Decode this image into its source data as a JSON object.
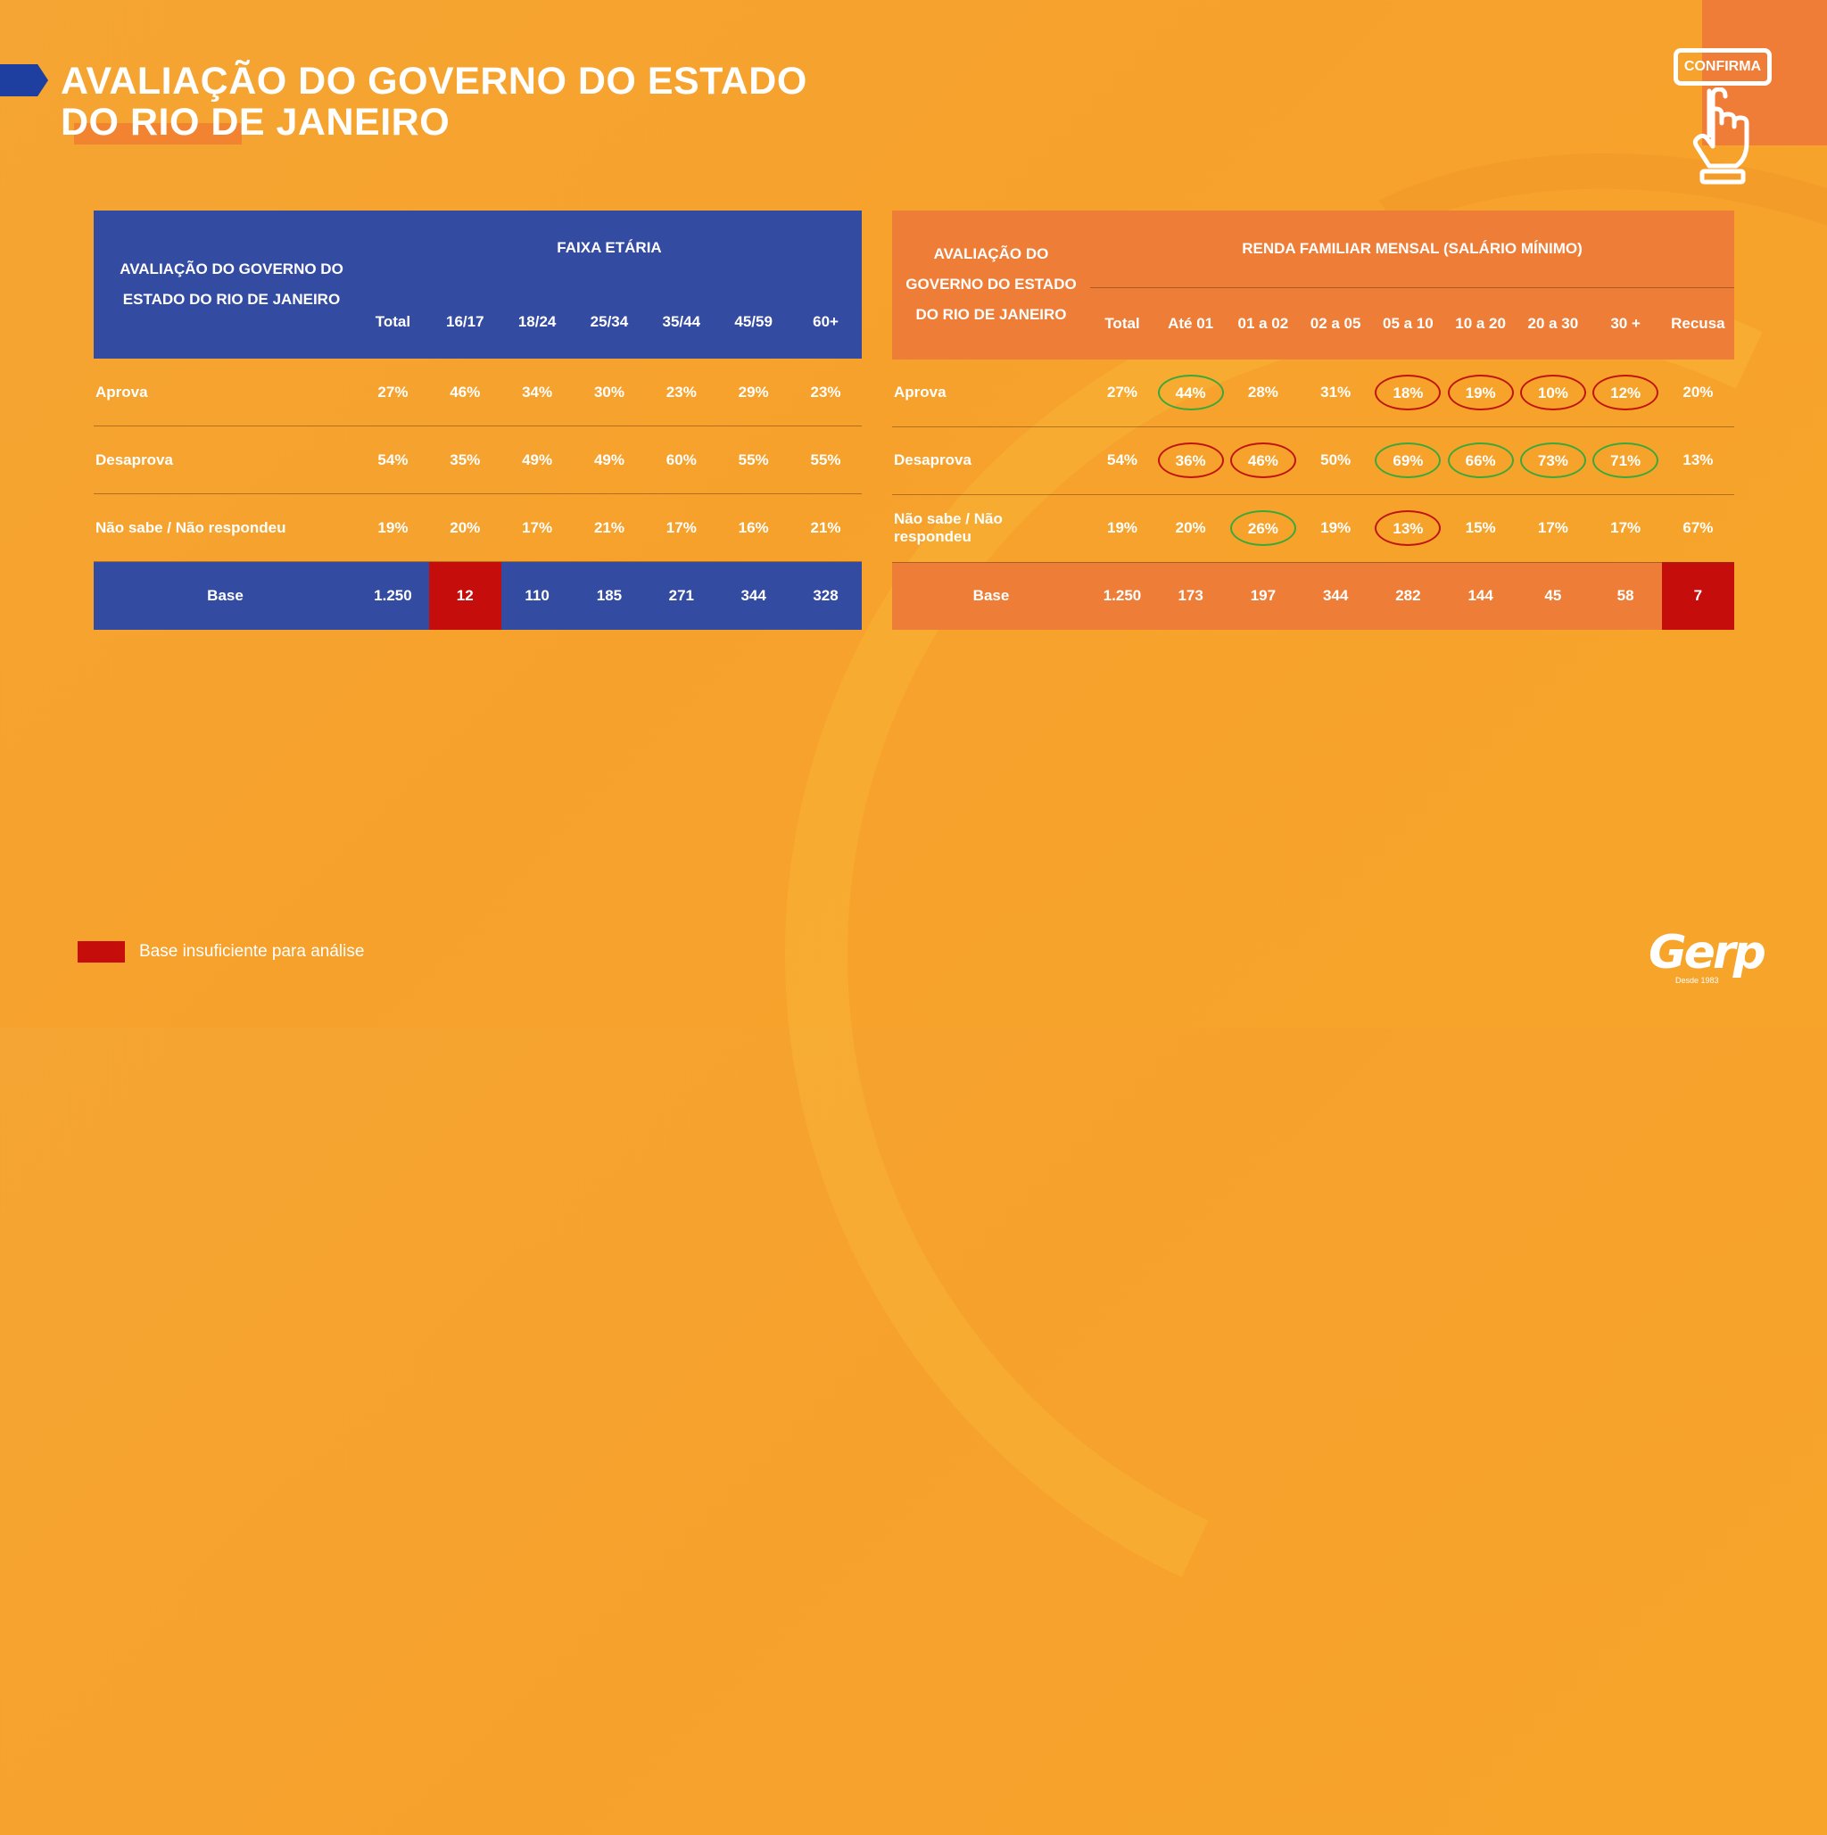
{
  "title": {
    "line1": "AVALIAÇÃO DO GOVERNO DO ESTADO",
    "line2": "DO RIO DE JANEIRO"
  },
  "confirm_badge": "CONFIRMA",
  "age_table": {
    "corner_label_line1": "AVALIAÇÃO DO GOVERNO DO",
    "corner_label_line2": "ESTADO DO RIO DE JANEIRO",
    "group_title": "FAIXA ETÁRIA",
    "columns": [
      "Total",
      "16/17",
      "18/24",
      "25/34",
      "35/44",
      "45/59",
      "60+"
    ],
    "rows": [
      {
        "label": "Aprova",
        "values": [
          "27%",
          "46%",
          "34%",
          "30%",
          "23%",
          "29%",
          "23%"
        ]
      },
      {
        "label": "Desaprova",
        "values": [
          "54%",
          "35%",
          "49%",
          "49%",
          "60%",
          "55%",
          "55%"
        ]
      },
      {
        "label": "Não sabe / Não respondeu",
        "values": [
          "19%",
          "20%",
          "17%",
          "21%",
          "17%",
          "16%",
          "21%"
        ]
      }
    ],
    "base": {
      "label": "Base",
      "values": [
        "1.250",
        "12",
        "110",
        "185",
        "271",
        "344",
        "328"
      ]
    }
  },
  "income_table": {
    "corner_label_line1": "AVALIAÇÃO DO",
    "corner_label_line2": "GOVERNO DO ESTADO",
    "corner_label_line3": "DO RIO DE JANEIRO",
    "group_title": "RENDA FAMILIAR MENSAL (SALÁRIO MÍNIMO)",
    "columns": [
      "Total",
      "Até 01",
      "01 a 02",
      "02 a 05",
      "05 a 10",
      "10 a 20",
      "20 a 30",
      "30 +",
      "Recusa"
    ],
    "rows": [
      {
        "label": "Aprova",
        "values": [
          "27%",
          "44%",
          "28%",
          "31%",
          "18%",
          "19%",
          "10%",
          "12%",
          "20%"
        ]
      },
      {
        "label": "Desaprova",
        "values": [
          "54%",
          "36%",
          "46%",
          "50%",
          "69%",
          "66%",
          "73%",
          "71%",
          "13%"
        ]
      },
      {
        "label": "Não sabe / Não respondeu",
        "values": [
          "19%",
          "20%",
          "26%",
          "19%",
          "13%",
          "15%",
          "17%",
          "17%",
          "67%"
        ]
      }
    ],
    "base": {
      "label": "Base",
      "values": [
        "1.250",
        "173",
        "197",
        "344",
        "282",
        "144",
        "45",
        "58",
        "7"
      ]
    }
  },
  "legend": {
    "text": "Base insuficiente para análise",
    "color": "#c50d0c"
  },
  "logo": {
    "name": "Gerp",
    "tagline": "Desde 1983"
  },
  "colors": {
    "blue": "#344ba2",
    "orange": "#ee7e37",
    "red": "#c50d0c",
    "circle_red": "#c0150d",
    "circle_green": "#3aa83a"
  }
}
